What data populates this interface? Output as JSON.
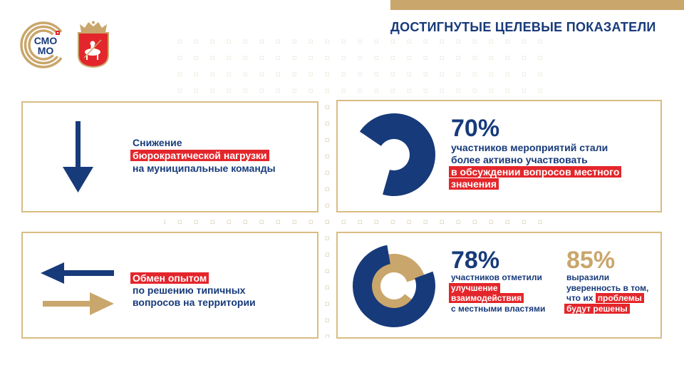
{
  "header": {
    "title": "ДОСТИГНУТЫЕ ЦЕЛЕВЫЕ ПОКАЗАТЕЛИ"
  },
  "logo": {
    "line1": "СМО",
    "line2": "МО",
    "emblem_icon": "coat-of-arms-emblem"
  },
  "colors": {
    "navy": "#173A7A",
    "gold": "#C9A66B",
    "red": "#E3262B",
    "border": "#D9BC82"
  },
  "panels": {
    "bureaucracy": {
      "icon": "down-arrow-icon",
      "line1": "Снижение",
      "highlight": "бюрократической нагрузки",
      "line3": "на муниципальные команды"
    },
    "participation": {
      "percent": "70%",
      "line1": "участников мероприятий стали",
      "line2": "более активно участвовать",
      "highlight1": "в обсуждении вопросов местного",
      "highlight2": "значения"
    },
    "experience": {
      "icons": [
        "left-arrow-icon",
        "right-arrow-icon"
      ],
      "highlight": "Обмен опытом",
      "line2": "по решению типичных",
      "line3": "вопросов на территории"
    },
    "interaction": {
      "percent": "78%",
      "line1": "участников отметили",
      "highlight1": "улучшение",
      "highlight2": "взаимодействия",
      "line4": "с местными властями"
    },
    "confidence": {
      "percent": "85%",
      "line1": "выразили",
      "line2": "уверенность в том,",
      "line3": "что их",
      "highlight1": "проблемы",
      "highlight2": "будут решены"
    }
  }
}
